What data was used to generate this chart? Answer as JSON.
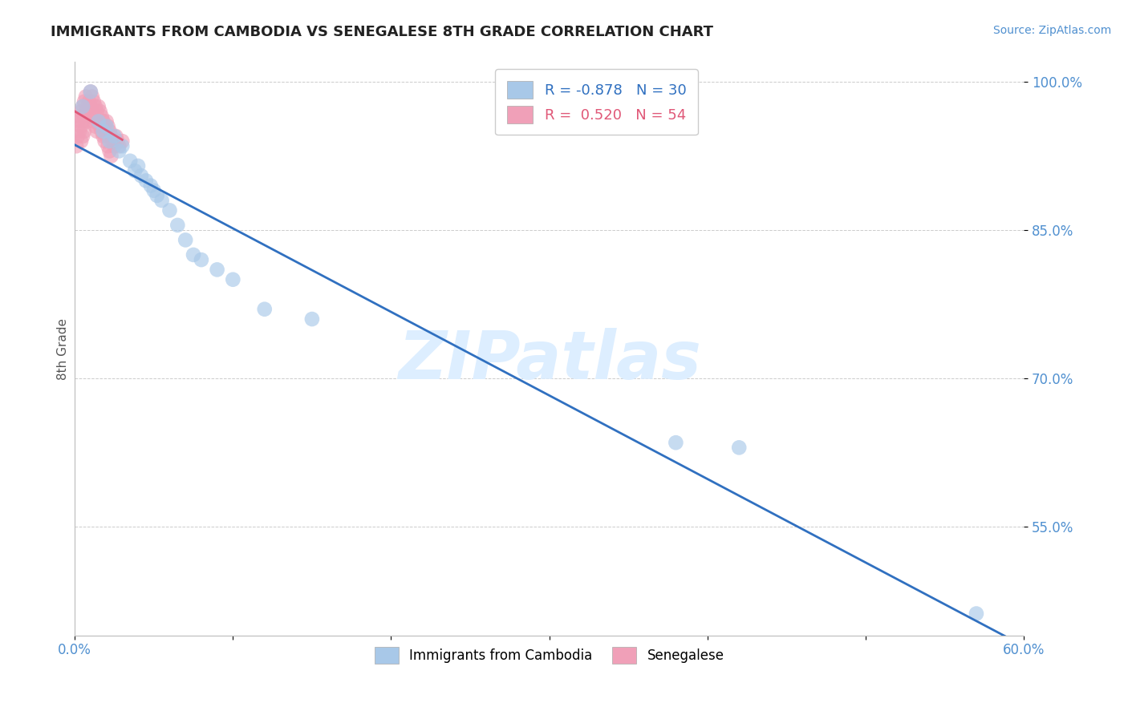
{
  "title": "IMMIGRANTS FROM CAMBODIA VS SENEGALESE 8TH GRADE CORRELATION CHART",
  "source": "Source: ZipAtlas.com",
  "xlabel_blue": "Immigrants from Cambodia",
  "xlabel_pink": "Senegalese",
  "ylabel": "8th Grade",
  "xlim": [
    0.0,
    0.6
  ],
  "ylim": [
    0.44,
    1.02
  ],
  "yticks": [
    0.55,
    0.7,
    0.85,
    1.0
  ],
  "ytick_labels": [
    "55.0%",
    "70.0%",
    "85.0%",
    "100.0%"
  ],
  "blue_R": -0.878,
  "blue_N": 30,
  "pink_R": 0.52,
  "pink_N": 54,
  "blue_color": "#a8c8e8",
  "pink_color": "#f0a0b8",
  "blue_line_color": "#3070c0",
  "pink_line_color": "#e05878",
  "grid_color": "#cccccc",
  "background_color": "#ffffff",
  "watermark_color": "#ddeeff",
  "blue_x": [
    0.005,
    0.01,
    0.015,
    0.018,
    0.02,
    0.022,
    0.025,
    0.028,
    0.03,
    0.035,
    0.038,
    0.04,
    0.042,
    0.045,
    0.048,
    0.05,
    0.052,
    0.055,
    0.06,
    0.065,
    0.07,
    0.075,
    0.08,
    0.09,
    0.1,
    0.12,
    0.15,
    0.38,
    0.42,
    0.57
  ],
  "blue_y": [
    0.975,
    0.99,
    0.96,
    0.95,
    0.955,
    0.94,
    0.945,
    0.93,
    0.935,
    0.92,
    0.91,
    0.915,
    0.905,
    0.9,
    0.895,
    0.89,
    0.885,
    0.88,
    0.87,
    0.855,
    0.84,
    0.825,
    0.82,
    0.81,
    0.8,
    0.77,
    0.76,
    0.635,
    0.63,
    0.462
  ],
  "pink_x": [
    0.001,
    0.002,
    0.002,
    0.003,
    0.003,
    0.004,
    0.004,
    0.004,
    0.005,
    0.005,
    0.005,
    0.006,
    0.006,
    0.006,
    0.007,
    0.007,
    0.008,
    0.008,
    0.009,
    0.009,
    0.01,
    0.01,
    0.011,
    0.011,
    0.012,
    0.012,
    0.013,
    0.013,
    0.014,
    0.014,
    0.015,
    0.015,
    0.016,
    0.016,
    0.017,
    0.017,
    0.018,
    0.018,
    0.019,
    0.019,
    0.02,
    0.02,
    0.021,
    0.021,
    0.022,
    0.022,
    0.023,
    0.023,
    0.024,
    0.025,
    0.026,
    0.027,
    0.028,
    0.03
  ],
  "pink_y": [
    0.935,
    0.945,
    0.96,
    0.95,
    0.965,
    0.955,
    0.97,
    0.94,
    0.975,
    0.96,
    0.945,
    0.98,
    0.965,
    0.95,
    0.985,
    0.97,
    0.975,
    0.96,
    0.98,
    0.965,
    0.99,
    0.975,
    0.985,
    0.97,
    0.98,
    0.96,
    0.975,
    0.955,
    0.97,
    0.95,
    0.975,
    0.96,
    0.97,
    0.955,
    0.965,
    0.95,
    0.96,
    0.945,
    0.955,
    0.94,
    0.96,
    0.945,
    0.955,
    0.935,
    0.95,
    0.93,
    0.945,
    0.925,
    0.94,
    0.935,
    0.945,
    0.94,
    0.935,
    0.94
  ]
}
